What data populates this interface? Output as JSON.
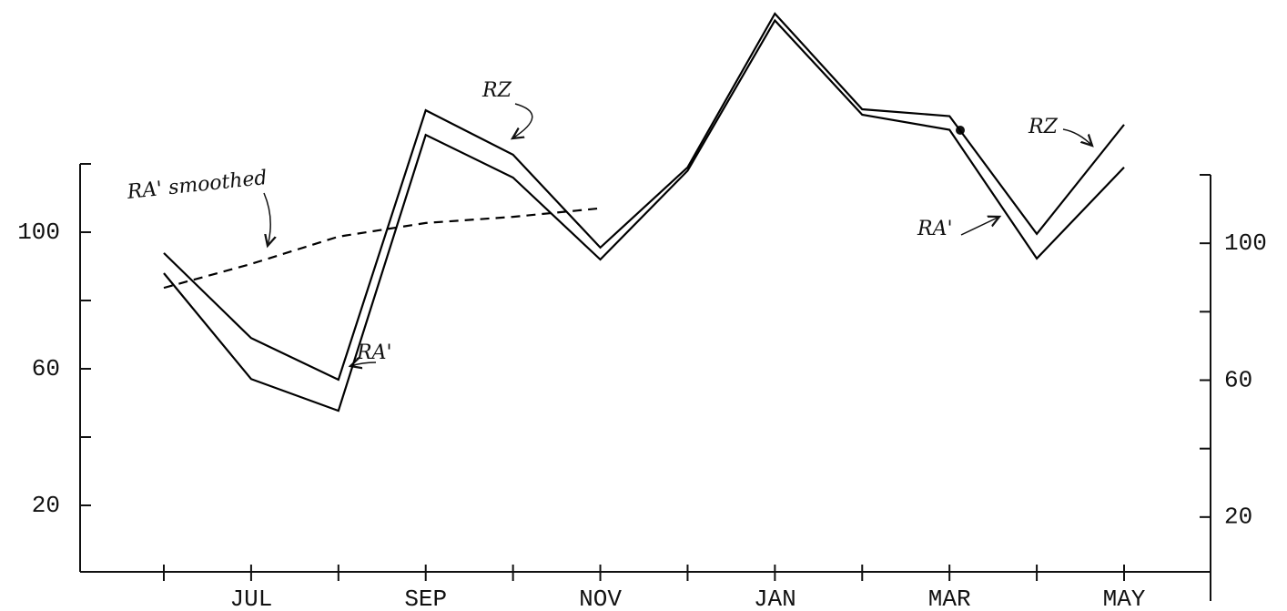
{
  "chart_data": {
    "type": "line",
    "categories": [
      null,
      "JUL",
      null,
      "SEP",
      null,
      "NOV",
      null,
      "JAN",
      null,
      "MAR",
      null,
      "MAY"
    ],
    "series": [
      {
        "name": "RZ",
        "color": "#000000",
        "values": [
          93.9,
          69,
          56.8,
          135.7,
          122.7,
          95.5,
          119,
          164,
          136,
          134,
          99.5,
          131.5
        ]
      },
      {
        "name": "RA'",
        "color": "#000000",
        "values": [
          88,
          57,
          47.7,
          128.5,
          116,
          92,
          118,
          162,
          134.4,
          130,
          92.3,
          119
        ]
      },
      {
        "name": "RA' smoothed",
        "color": "#000000",
        "dashed": true,
        "values": [
          83.7,
          90.7,
          98.7,
          102.7,
          104.5,
          107,
          null,
          null,
          null,
          null,
          null,
          null
        ]
      }
    ],
    "ylim": [
      0,
      120
    ],
    "yticks": [
      20,
      60,
      100
    ],
    "yminorticks": [
      40,
      80,
      120
    ],
    "y2lim": [
      0,
      120
    ],
    "y2ticks": [
      20,
      60,
      100
    ],
    "y2minorticks": [
      40,
      80,
      120
    ],
    "annotations": [
      "RA' smoothed",
      "RZ",
      "RA'",
      "RZ",
      "RA'"
    ]
  }
}
